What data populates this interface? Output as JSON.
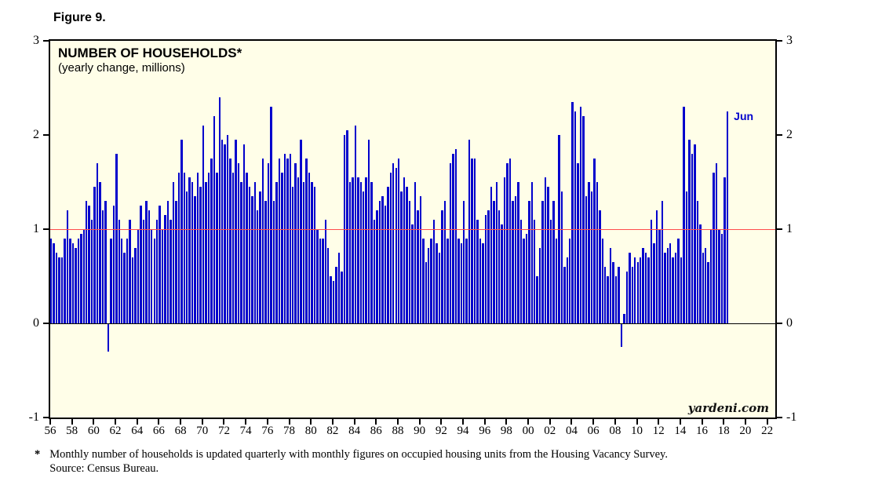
{
  "figure_label": "Figure 9.",
  "title": "NUMBER OF HOUSEHOLDS*",
  "subtitle": "(yearly change, millions)",
  "watermark": "yardeni.com",
  "footnote": {
    "star": "*",
    "line1": "Monthly number of households is updated quarterly with monthly figures on occupied housing units from the Housing Vacancy Survey.",
    "line2": "Source: Census Bureau."
  },
  "colors": {
    "bar": "#0000cc",
    "reference_line": "#ff4d4d",
    "background": "#fffee8",
    "annotation": "#0000cc"
  },
  "chart_data": {
    "type": "bar",
    "title": "NUMBER OF HOUSEHOLDS* (yearly change, millions)",
    "ylabel": "yearly change, millions",
    "ylim": [
      -1,
      3
    ],
    "y_ticks": [
      -1,
      0,
      1,
      2,
      3
    ],
    "reference_line_y": 1,
    "x_domain": [
      1956,
      2022.75
    ],
    "x_start_year": 1956,
    "points_per_year": 4,
    "x_tick_start_year": 1956,
    "x_tick_step": 2,
    "x_tick_labels": [
      "56",
      "58",
      "60",
      "62",
      "64",
      "66",
      "68",
      "70",
      "72",
      "74",
      "76",
      "78",
      "80",
      "82",
      "84",
      "86",
      "88",
      "90",
      "92",
      "94",
      "96",
      "98",
      "00",
      "02",
      "04",
      "06",
      "08",
      "10",
      "12",
      "14",
      "16",
      "18",
      "20",
      "22"
    ],
    "last_point_label": "Jun",
    "values": [
      0.9,
      0.85,
      0.75,
      0.7,
      0.7,
      0.9,
      1.2,
      0.9,
      0.85,
      0.8,
      0.9,
      0.95,
      1.0,
      1.3,
      1.25,
      1.1,
      1.45,
      1.7,
      1.5,
      1.2,
      1.3,
      -0.3,
      0.9,
      1.25,
      1.8,
      1.1,
      0.9,
      0.75,
      0.9,
      1.1,
      0.7,
      0.8,
      1.0,
      1.25,
      1.1,
      1.3,
      1.2,
      1.0,
      0.9,
      1.1,
      1.25,
      1.0,
      1.15,
      1.3,
      1.1,
      1.5,
      1.3,
      1.6,
      1.95,
      1.6,
      1.4,
      1.55,
      1.5,
      1.35,
      1.6,
      1.45,
      2.1,
      1.5,
      1.6,
      1.75,
      2.2,
      1.6,
      2.4,
      1.95,
      1.9,
      2.0,
      1.75,
      1.6,
      1.95,
      1.7,
      1.5,
      1.9,
      1.6,
      1.45,
      1.35,
      1.5,
      1.2,
      1.4,
      1.75,
      1.3,
      1.7,
      2.3,
      1.3,
      1.5,
      1.75,
      1.6,
      1.8,
      1.75,
      1.8,
      1.45,
      1.7,
      1.55,
      1.95,
      1.5,
      1.75,
      1.6,
      1.5,
      1.45,
      1.0,
      0.9,
      0.9,
      1.1,
      0.8,
      0.5,
      0.45,
      0.6,
      0.75,
      0.55,
      2.0,
      2.05,
      1.5,
      1.55,
      2.1,
      1.55,
      1.5,
      1.4,
      1.55,
      1.95,
      1.5,
      1.1,
      1.2,
      1.3,
      1.35,
      1.25,
      1.45,
      1.6,
      1.7,
      1.65,
      1.75,
      1.4,
      1.55,
      1.45,
      1.3,
      1.05,
      1.5,
      1.2,
      1.35,
      0.9,
      0.65,
      0.8,
      0.9,
      1.1,
      0.85,
      0.75,
      1.2,
      1.3,
      0.9,
      1.7,
      1.8,
      1.85,
      0.9,
      0.85,
      1.3,
      0.9,
      1.95,
      1.75,
      1.75,
      1.1,
      0.9,
      0.85,
      1.15,
      1.2,
      1.45,
      1.3,
      1.5,
      1.2,
      1.05,
      1.55,
      1.7,
      1.75,
      1.3,
      1.35,
      1.5,
      1.1,
      0.9,
      0.95,
      1.3,
      1.5,
      1.1,
      0.5,
      0.8,
      1.3,
      1.55,
      1.45,
      1.1,
      1.3,
      0.9,
      2.0,
      1.4,
      0.6,
      0.7,
      0.9,
      2.35,
      2.25,
      1.7,
      2.3,
      2.2,
      1.35,
      1.5,
      1.4,
      1.75,
      1.5,
      1.2,
      0.9,
      0.6,
      0.5,
      0.8,
      0.65,
      0.5,
      0.6,
      -0.25,
      0.1,
      0.55,
      0.75,
      0.6,
      0.7,
      0.65,
      0.7,
      0.8,
      0.75,
      0.7,
      1.1,
      0.85,
      1.2,
      1.0,
      1.3,
      0.75,
      0.8,
      0.85,
      0.7,
      0.75,
      0.9,
      0.7,
      2.3,
      1.4,
      1.95,
      1.8,
      1.9,
      1.3,
      1.05,
      0.75,
      0.8,
      0.65,
      1.0,
      1.6,
      1.7,
      1.0,
      0.95,
      1.55,
      2.25
    ]
  }
}
